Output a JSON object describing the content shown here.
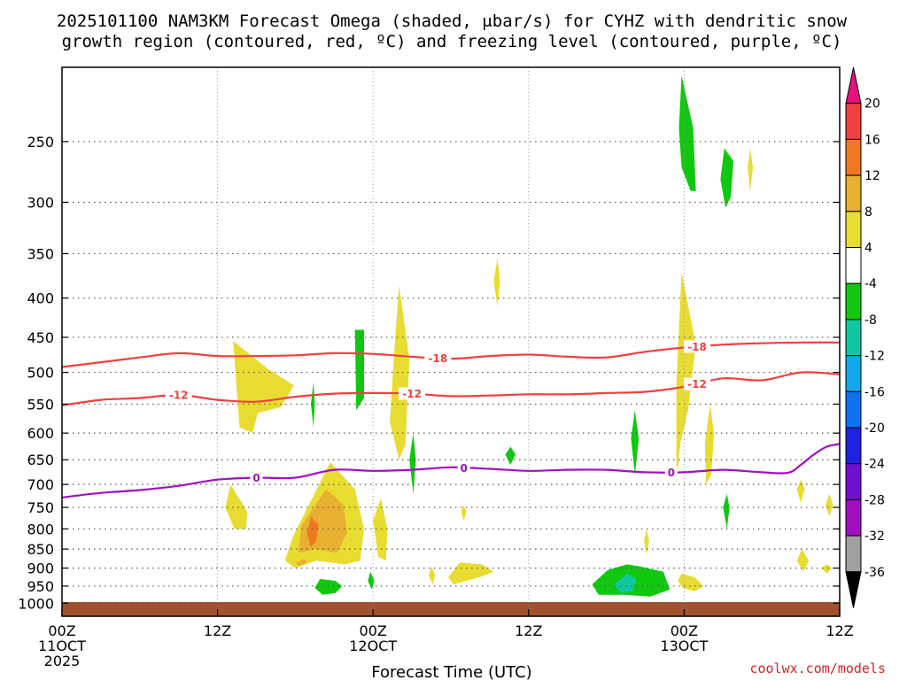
{
  "chart_data": {
    "type": "contour",
    "title_lines": [
      "2025101100 NAM3KM Forecast Omega (shaded, μbar/s) for CYHZ with dendritic snow",
      "growth region (contoured, red, ºC) and freezing level (contoured, purple, ºC)"
    ],
    "xlabel": "Forecast Time (UTC)",
    "ylabel": "",
    "xlim": [
      0,
      60
    ],
    "ylim": [
      1040,
      200
    ],
    "y_scale": "log",
    "x_ticks": [
      {
        "x": 0,
        "lines": [
          "00Z",
          "11OCT",
          "2025"
        ]
      },
      {
        "x": 12,
        "lines": [
          "12Z"
        ]
      },
      {
        "x": 24,
        "lines": [
          "00Z",
          "12OCT"
        ]
      },
      {
        "x": 36,
        "lines": [
          "12Z"
        ]
      },
      {
        "x": 48,
        "lines": [
          "00Z",
          "13OCT"
        ]
      },
      {
        "x": 60,
        "lines": [
          "12Z"
        ]
      }
    ],
    "y_ticks": [
      250,
      300,
      350,
      400,
      450,
      500,
      550,
      600,
      650,
      700,
      750,
      800,
      850,
      900,
      950,
      1000
    ],
    "grid": true,
    "colorbar": {
      "labels": [
        "20",
        "16",
        "12",
        "8",
        "4",
        "-4",
        "-8",
        "-12",
        "-16",
        "-20",
        "-24",
        "-28",
        "-32",
        "-36"
      ],
      "colors": [
        "#e8107a",
        "#f04040",
        "#f07820",
        "#e8b030",
        "#e8dc30",
        "#ffffff",
        "#10c810",
        "#10c8a0",
        "#10a8e8",
        "#1070f0",
        "#2020e0",
        "#7010d0",
        "#a010c0",
        "#a0a0a0",
        "#000000"
      ]
    },
    "contours": [
      {
        "level": "-18",
        "color": "#f04040",
        "x": [
          0,
          3,
          6,
          9,
          12,
          15,
          18,
          21,
          24,
          27,
          30,
          33,
          36,
          39,
          42,
          45,
          48,
          51,
          54,
          57,
          60
        ],
        "y": [
          492,
          485,
          478,
          472,
          476,
          476,
          475,
          472,
          473,
          477,
          480,
          476,
          474,
          477,
          478,
          470,
          464,
          460,
          458,
          457,
          457
        ],
        "label_x": [
          29,
          49
        ]
      },
      {
        "level": "-12",
        "color": "#f04040",
        "x": [
          0,
          3,
          6,
          9,
          12,
          15,
          18,
          21,
          24,
          27,
          30,
          33,
          36,
          39,
          42,
          45,
          48,
          51,
          54,
          57,
          60
        ],
        "y": [
          552,
          543,
          540,
          535,
          543,
          546,
          538,
          533,
          532,
          533,
          537,
          536,
          534,
          534,
          532,
          530,
          522,
          509,
          512,
          500,
          503
        ],
        "label_x": [
          9,
          27,
          49
        ]
      },
      {
        "level": "0",
        "color": "#a010c0",
        "x": [
          0,
          3,
          6,
          9,
          12,
          15,
          18,
          21,
          24,
          27,
          30,
          33,
          36,
          39,
          42,
          45,
          48,
          51,
          54,
          56,
          57,
          58,
          59,
          60
        ],
        "y": [
          728,
          718,
          712,
          703,
          690,
          686,
          686,
          670,
          672,
          670,
          665,
          668,
          672,
          670,
          670,
          675,
          675,
          670,
          675,
          676,
          660,
          640,
          625,
          620
        ],
        "label_x": [
          15,
          31,
          47
        ]
      }
    ],
    "shaded_regions": [
      {
        "value_range": "4 to 8",
        "color": "#e8dc30",
        "x": [
          13.2,
          15.9,
          17.9,
          16.9,
          15.1,
          14.7,
          13.7,
          13.2
        ],
        "y": [
          455,
          495,
          520,
          555,
          565,
          600,
          590,
          455
        ]
      },
      {
        "value_range": "4 to 8",
        "color": "#e8dc30",
        "x": [
          13.0,
          14.3,
          14.2,
          13.3,
          12.6,
          13.0
        ],
        "y": [
          700,
          760,
          800,
          800,
          750,
          700
        ]
      },
      {
        "value_range": "4 to 8",
        "color": "#e8dc30",
        "x": [
          20.7,
          22.6,
          23.3,
          23.0,
          21.8,
          19.6,
          18.0,
          17.2,
          17.8,
          20.7
        ],
        "y": [
          655,
          710,
          800,
          880,
          890,
          880,
          900,
          880,
          820,
          655
        ]
      },
      {
        "value_range": "4 to 8",
        "color": "#e8dc30",
        "x": [
          26.0,
          26.8,
          26.5,
          26.0,
          25.3,
          25.6,
          26.0
        ],
        "y": [
          385,
          480,
          620,
          650,
          580,
          480,
          385
        ]
      },
      {
        "value_range": "4 to 8",
        "color": "#e8dc30",
        "x": [
          24.6,
          25.1,
          25.0,
          24.4,
          24.0,
          24.6
        ],
        "y": [
          730,
          800,
          880,
          870,
          780,
          730
        ]
      },
      {
        "value_range": "4 to 8",
        "color": "#e8dc30",
        "x": [
          30.7,
          32.4,
          33.3,
          32.2,
          30.2,
          29.8,
          30.7
        ],
        "y": [
          885,
          890,
          910,
          925,
          945,
          925,
          885
        ]
      },
      {
        "value_range": "4 to 8",
        "color": "#e8dc30",
        "x": [
          28.5,
          28.8,
          28.6,
          28.3,
          28.5
        ],
        "y": [
          895,
          920,
          945,
          920,
          895
        ]
      },
      {
        "value_range": "4 to 8",
        "color": "#e8dc30",
        "x": [
          47.8,
          48.9,
          48.3,
          47.7,
          47.4,
          47.4,
          47.8
        ],
        "y": [
          370,
          460,
          560,
          620,
          700,
          520,
          370
        ]
      },
      {
        "value_range": "4 to 8",
        "color": "#e8dc30",
        "x": [
          50.0,
          50.3,
          50.1,
          49.7,
          49.6,
          50.0
        ],
        "y": [
          550,
          600,
          680,
          700,
          620,
          550
        ]
      },
      {
        "value_range": "4 to 8",
        "color": "#e8dc30",
        "x": [
          47.8,
          48.8,
          49.5,
          48.8,
          47.9,
          47.5,
          47.8
        ],
        "y": [
          915,
          925,
          950,
          965,
          955,
          935,
          915
        ]
      },
      {
        "value_range": "4 to 8",
        "color": "#e8dc30",
        "x": [
          33.6,
          33.8,
          33.6,
          33.3,
          33.6
        ],
        "y": [
          355,
          380,
          410,
          380,
          355
        ]
      },
      {
        "value_range": "4 to 8",
        "color": "#e8dc30",
        "x": [
          53.1,
          53.3,
          53.1,
          52.9,
          53.1
        ],
        "y": [
          255,
          270,
          290,
          270,
          255
        ]
      },
      {
        "value_range": "4 to 8",
        "color": "#e8dc30",
        "x": [
          31.0,
          31.2,
          31.0,
          30.8,
          31.0
        ],
        "y": [
          745,
          760,
          780,
          760,
          745
        ]
      },
      {
        "value_range": "4 to 8",
        "color": "#e8dc30",
        "x": [
          45.1,
          45.3,
          45.1,
          44.9,
          45.1
        ],
        "y": [
          800,
          830,
          865,
          830,
          800
        ]
      },
      {
        "value_range": "4 to 8",
        "color": "#e8dc30",
        "x": [
          57.0,
          57.3,
          57.0,
          56.7,
          57.0
        ],
        "y": [
          690,
          710,
          740,
          710,
          690
        ]
      },
      {
        "value_range": "4 to 8",
        "color": "#e8dc30",
        "x": [
          59.2,
          59.5,
          59.2,
          58.9,
          59.2
        ],
        "y": [
          720,
          745,
          770,
          745,
          720
        ]
      },
      {
        "value_range": "4 to 8",
        "color": "#e8dc30",
        "x": [
          57.1,
          57.6,
          57.2,
          56.7,
          57.1
        ],
        "y": [
          850,
          880,
          910,
          880,
          850
        ]
      },
      {
        "value_range": "4 to 8",
        "color": "#e8dc30",
        "x": [
          59.0,
          59.4,
          59.0,
          58.6,
          59.0
        ],
        "y": [
          890,
          900,
          915,
          900,
          890
        ]
      },
      {
        "value_range": "8 to 12",
        "color": "#e8b030",
        "x": [
          20.4,
          21.7,
          22.0,
          21.2,
          19.6,
          18.2,
          18.5,
          20.4
        ],
        "y": [
          710,
          745,
          810,
          860,
          850,
          860,
          790,
          710
        ]
      },
      {
        "value_range": "8 to 12",
        "color": "#e8b030",
        "x": [
          18.7,
          18.9,
          18.3,
          18.0,
          18.7
        ],
        "y": [
          875,
          885,
          895,
          885,
          875
        ]
      },
      {
        "value_range": "12 to 16",
        "color": "#f07820",
        "x": [
          19.2,
          19.8,
          19.6,
          19.2,
          18.9,
          19.2
        ],
        "y": [
          770,
          790,
          830,
          845,
          810,
          770
        ]
      },
      {
        "value_range": "-4 to -8",
        "color": "#10c810",
        "x": [
          23.3,
          23.3,
          22.7,
          22.6,
          23.3
        ],
        "y": [
          440,
          540,
          560,
          440,
          440
        ]
      },
      {
        "value_range": "-4 to -8",
        "color": "#10c810",
        "x": [
          19.4,
          19.5,
          19.4,
          19.2,
          19.4
        ],
        "y": [
          515,
          550,
          590,
          550,
          515
        ]
      },
      {
        "value_range": "-4 to -8",
        "color": "#10c810",
        "x": [
          27.1,
          27.3,
          27.1,
          26.8,
          27.1
        ],
        "y": [
          600,
          650,
          720,
          650,
          600
        ]
      },
      {
        "value_range": "-4 to -8",
        "color": "#10c810",
        "x": [
          34.6,
          35.0,
          34.6,
          34.2,
          34.6
        ],
        "y": [
          625,
          640,
          660,
          640,
          625
        ]
      },
      {
        "value_range": "-4 to -8",
        "color": "#10c810",
        "x": [
          19.9,
          21.1,
          21.6,
          21.1,
          20.1,
          19.5,
          19.9
        ],
        "y": [
          930,
          935,
          950,
          970,
          975,
          955,
          930
        ]
      },
      {
        "value_range": "-4 to -8",
        "color": "#10c810",
        "x": [
          23.8,
          24.1,
          23.9,
          23.6,
          23.8
        ],
        "y": [
          910,
          935,
          960,
          935,
          910
        ]
      },
      {
        "value_range": "-4 to -8",
        "color": "#10c810",
        "x": [
          43.6,
          44.5,
          46.4,
          46.9,
          45.4,
          43.3,
          41.4,
          40.9,
          42.1,
          43.6
        ],
        "y": [
          890,
          895,
          910,
          960,
          980,
          975,
          975,
          945,
          905,
          890
        ]
      },
      {
        "value_range": "-4 to -8",
        "color": "#10c810",
        "x": [
          44.2,
          44.5,
          44.2,
          43.9,
          44.2
        ],
        "y": [
          560,
          610,
          680,
          610,
          560
        ]
      },
      {
        "value_range": "-4 to -8",
        "color": "#10c810",
        "x": [
          51.3,
          51.5,
          51.3,
          51.0,
          51.3
        ],
        "y": [
          720,
          750,
          800,
          750,
          720
        ]
      },
      {
        "value_range": "-4 to -8",
        "color": "#10c810",
        "x": [
          47.8,
          48.7,
          48.9,
          48.5,
          47.8,
          47.6,
          47.8
        ],
        "y": [
          205,
          240,
          290,
          290,
          270,
          240,
          205
        ]
      },
      {
        "value_range": "-4 to -8",
        "color": "#10c810",
        "x": [
          51.1,
          51.8,
          51.6,
          51.2,
          50.8,
          51.1
        ],
        "y": [
          255,
          265,
          295,
          305,
          280,
          255
        ]
      },
      {
        "value_range": "-8 to -12",
        "color": "#10c8a0",
        "x": [
          43.6,
          44.3,
          44.0,
          43.1,
          42.6,
          43.6
        ],
        "y": [
          915,
          930,
          965,
          970,
          945,
          915
        ]
      }
    ],
    "surface_fill_color": "#a0522d"
  },
  "credit": "coolwx.com/models"
}
